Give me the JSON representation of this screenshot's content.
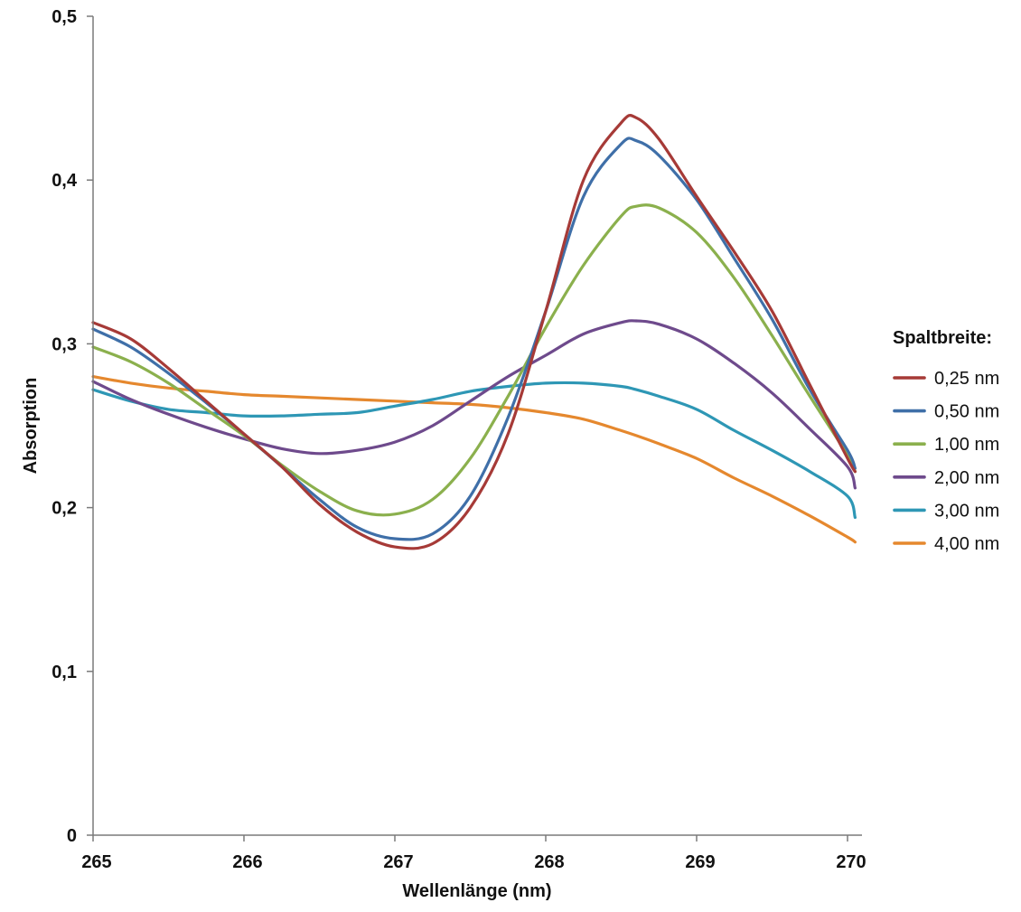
{
  "chart_data": {
    "type": "line",
    "title": "",
    "xlabel": "Wellenlänge (nm)",
    "ylabel": "Absorption",
    "xlim": [
      265,
      270.1
    ],
    "ylim": [
      0,
      0.5
    ],
    "x_ticks": [
      {
        "value": 265,
        "label": "265"
      },
      {
        "value": 266,
        "label": "266"
      },
      {
        "value": 267,
        "label": "267"
      },
      {
        "value": 268,
        "label": "268"
      },
      {
        "value": 269,
        "label": "269"
      },
      {
        "value": 270,
        "label": "270"
      }
    ],
    "y_ticks": [
      {
        "value": 0,
        "label": "0"
      },
      {
        "value": 0.1,
        "label": "0,1"
      },
      {
        "value": 0.2,
        "label": "0,2"
      },
      {
        "value": 0.3,
        "label": "0,3"
      },
      {
        "value": 0.4,
        "label": "0,4"
      },
      {
        "value": 0.5,
        "label": "0,5"
      }
    ],
    "grid": false,
    "legend": {
      "title": "Spaltbreite:",
      "position": "right"
    },
    "x": [
      265,
      265.25,
      265.5,
      265.75,
      266,
      266.25,
      266.5,
      266.75,
      267,
      267.25,
      267.5,
      267.75,
      268,
      268.25,
      268.5,
      268.6,
      268.75,
      269,
      269.25,
      269.5,
      269.75,
      270,
      270.05
    ],
    "series": [
      {
        "name": "0,25 nm",
        "color": "#A63A37",
        "values": [
          0.313,
          0.303,
          0.285,
          0.265,
          0.245,
          0.225,
          0.202,
          0.185,
          0.176,
          0.178,
          0.2,
          0.245,
          0.32,
          0.4,
          0.435,
          0.438,
          0.425,
          0.39,
          0.356,
          0.32,
          0.275,
          0.23,
          0.222
        ]
      },
      {
        "name": "0,50 nm",
        "color": "#3F6FA8",
        "values": [
          0.309,
          0.298,
          0.282,
          0.264,
          0.245,
          0.225,
          0.205,
          0.188,
          0.181,
          0.184,
          0.207,
          0.255,
          0.32,
          0.39,
          0.422,
          0.424,
          0.415,
          0.388,
          0.352,
          0.315,
          0.272,
          0.235,
          0.224
        ]
      },
      {
        "name": "1,00 nm",
        "color": "#8BB04D",
        "values": [
          0.298,
          0.289,
          0.276,
          0.26,
          0.244,
          0.226,
          0.21,
          0.198,
          0.196,
          0.205,
          0.23,
          0.268,
          0.31,
          0.348,
          0.378,
          0.384,
          0.383,
          0.368,
          0.34,
          0.305,
          0.268,
          0.232,
          0.222
        ]
      },
      {
        "name": "2,00 nm",
        "color": "#6E4A8C",
        "values": [
          0.277,
          0.266,
          0.257,
          0.249,
          0.242,
          0.236,
          0.233,
          0.235,
          0.24,
          0.25,
          0.265,
          0.28,
          0.293,
          0.306,
          0.313,
          0.314,
          0.312,
          0.303,
          0.288,
          0.27,
          0.248,
          0.225,
          0.212
        ]
      },
      {
        "name": "3,00 nm",
        "color": "#2E97B5",
        "values": [
          0.272,
          0.265,
          0.26,
          0.258,
          0.256,
          0.256,
          0.257,
          0.258,
          0.262,
          0.266,
          0.271,
          0.274,
          0.276,
          0.276,
          0.274,
          0.272,
          0.268,
          0.26,
          0.247,
          0.235,
          0.222,
          0.207,
          0.194
        ]
      },
      {
        "name": "4,00 nm",
        "color": "#E5882E",
        "values": [
          0.28,
          0.276,
          0.273,
          0.271,
          0.269,
          0.268,
          0.267,
          0.266,
          0.265,
          0.264,
          0.263,
          0.261,
          0.258,
          0.254,
          0.247,
          0.244,
          0.239,
          0.23,
          0.218,
          0.207,
          0.195,
          0.182,
          0.179
        ]
      }
    ]
  }
}
